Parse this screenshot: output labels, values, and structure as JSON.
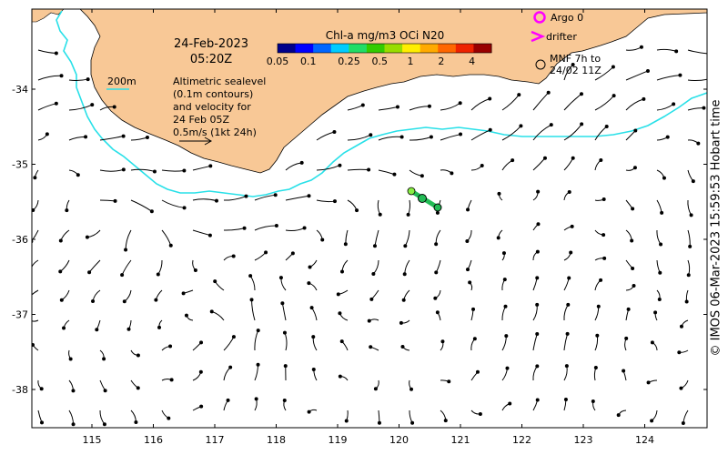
{
  "header": {
    "date": "24-Feb-2023",
    "time": "05:20Z"
  },
  "colorbar": {
    "title": "Chl-a mg/m3 OCi N20",
    "ticks": [
      "0.05",
      "0.1",
      "0.25",
      "0.5",
      "1",
      "2",
      "4"
    ],
    "colors": [
      "#00008b",
      "#0000ff",
      "#0066ff",
      "#00ccff",
      "#22dd66",
      "#33cc00",
      "#99dd00",
      "#ffee00",
      "#ffaa00",
      "#ff6600",
      "#ee2200",
      "#990000"
    ]
  },
  "legend": {
    "argo_label": "Argo 0",
    "drifter_label": "drifter",
    "mnf_label_line1": "MNF 7h to",
    "mnf_label_line2": "24/02 11Z",
    "isobath_label": "200m",
    "description_lines": [
      "Altimetric sealevel",
      "(0.1m contours)",
      "and velocity for",
      "24 Feb 05Z",
      "0.5m/s (1kt 24h)"
    ]
  },
  "axes": {
    "lon_ticks": [
      "115",
      "116",
      "117",
      "118",
      "119",
      "120",
      "121",
      "122",
      "123",
      "124"
    ],
    "lat_ticks": [
      "-34",
      "-35",
      "-36",
      "-37",
      "-38"
    ]
  },
  "credit": "© IMOS 06-Mar-2023 15:59:53 Hobart time",
  "colors": {
    "land": "#f8c896",
    "isobath": "#28e0e8",
    "argo": "#ff00ff",
    "drifter": "#ff00ff",
    "track": "#22bb55"
  }
}
